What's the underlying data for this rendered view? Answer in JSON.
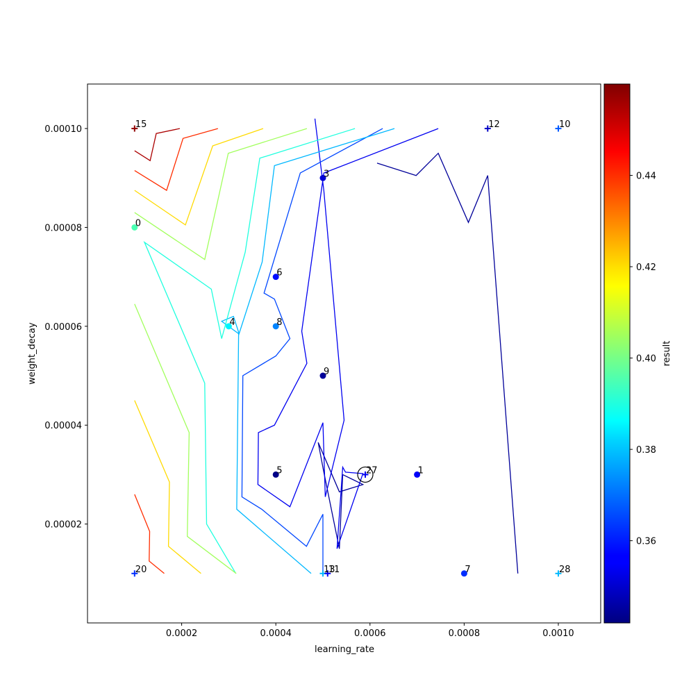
{
  "chart_data": {
    "type": "scatter",
    "xlabel": "learning_rate",
    "ylabel": "weight_decay",
    "colorbar_label": "result",
    "xlim": [
      0.0,
      0.00109
    ],
    "ylim": [
      0.0,
      0.000109
    ],
    "x_ticks": [
      {
        "v": 0.0002,
        "label": "0.0002"
      },
      {
        "v": 0.0004,
        "label": "0.0004"
      },
      {
        "v": 0.0006,
        "label": "0.0006"
      },
      {
        "v": 0.0008,
        "label": "0.0008"
      },
      {
        "v": 0.001,
        "label": "0.0010"
      }
    ],
    "y_ticks": [
      {
        "v": 2e-05,
        "label": "0.00002"
      },
      {
        "v": 4e-05,
        "label": "0.00004"
      },
      {
        "v": 6e-05,
        "label": "0.00006"
      },
      {
        "v": 8e-05,
        "label": "0.00008"
      },
      {
        "v": 0.0001,
        "label": "0.00010"
      }
    ],
    "colorbar": {
      "min": 0.342,
      "max": 0.46,
      "colormap": "jet",
      "ticks": [
        {
          "v": 0.36,
          "label": "0.36"
        },
        {
          "v": 0.38,
          "label": "0.38"
        },
        {
          "v": 0.4,
          "label": "0.40"
        },
        {
          "v": 0.42,
          "label": "0.42"
        },
        {
          "v": 0.44,
          "label": "0.44"
        }
      ]
    },
    "points": [
      {
        "label": "0",
        "x": 0.0001,
        "y": 8e-05,
        "result": 0.395,
        "marker": "circle"
      },
      {
        "label": "1",
        "x": 0.0007,
        "y": 3e-05,
        "result": 0.356,
        "marker": "circle"
      },
      {
        "label": "3",
        "x": 0.0005,
        "y": 9e-05,
        "result": 0.352,
        "marker": "circle"
      },
      {
        "label": "4",
        "x": 0.0003,
        "y": 6e-05,
        "result": 0.385,
        "marker": "circle"
      },
      {
        "label": "5",
        "x": 0.0004,
        "y": 3e-05,
        "result": 0.343,
        "marker": "circle"
      },
      {
        "label": "6",
        "x": 0.0004,
        "y": 7e-05,
        "result": 0.358,
        "marker": "circle"
      },
      {
        "label": "8",
        "x": 0.0004,
        "y": 6e-05,
        "result": 0.372,
        "marker": "circle"
      },
      {
        "label": "9",
        "x": 0.0005,
        "y": 5e-05,
        "result": 0.345,
        "marker": "circle"
      },
      {
        "label": "7",
        "x": 0.0008,
        "y": 1e-05,
        "result": 0.362,
        "marker": "circle"
      },
      {
        "label": "15",
        "x": 0.0001,
        "y": 0.0001,
        "result": 0.458,
        "marker": "plus"
      },
      {
        "label": "12",
        "x": 0.00085,
        "y": 0.0001,
        "result": 0.35,
        "marker": "plus"
      },
      {
        "label": "10",
        "x": 0.001,
        "y": 0.0001,
        "result": 0.367,
        "marker": "plus"
      },
      {
        "label": "27",
        "x": 0.00059,
        "y": 3e-05,
        "result": 0.355,
        "marker": "plus"
      },
      {
        "label": "20",
        "x": 0.0001,
        "y": 1e-05,
        "result": 0.362,
        "marker": "plus"
      },
      {
        "label": "13",
        "x": 0.0005,
        "y": 1e-05,
        "result": 0.378,
        "marker": "plus"
      },
      {
        "label": "11",
        "x": 0.00051,
        "y": 1e-05,
        "result": 0.355,
        "marker": "plus"
      },
      {
        "label": "28",
        "x": 0.001,
        "y": 1e-05,
        "result": 0.378,
        "marker": "plus"
      }
    ],
    "highlight": {
      "x": 0.00059,
      "y": 3e-05
    },
    "contours": [
      {
        "level": 0.345,
        "segments": [
          [
            [
              0.000615,
              9.3e-05
            ],
            [
              0.000698,
              9.05e-05
            ],
            [
              0.000745,
              9.5e-05
            ],
            [
              0.000809,
              8.1e-05
            ],
            [
              0.00085,
              9.05e-05
            ],
            [
              0.000914,
              1e-05
            ]
          ],
          [
            [
              0.000542,
              3e-05
            ],
            [
              0.000585,
              2.8e-05
            ],
            [
              0.000535,
              2.65e-05
            ],
            [
              0.00049,
              3.65e-05
            ],
            [
              0.000502,
              3.05e-05
            ],
            [
              0.000535,
              1.5e-05
            ],
            [
              0.000542,
              3e-05
            ]
          ]
        ]
      },
      {
        "level": 0.355,
        "segments": [
          [
            [
              0.000745,
              0.0001
            ],
            [
              0.000502,
              9.1e-05
            ],
            [
              0.000455,
              5.9e-05
            ],
            [
              0.000466,
              5.25e-05
            ],
            [
              0.000397,
              4e-05
            ],
            [
              0.000363,
              3.85e-05
            ],
            [
              0.000362,
              2.8e-05
            ],
            [
              0.00043,
              2.35e-05
            ],
            [
              0.0005,
              4.05e-05
            ],
            [
              0.000505,
              2.55e-05
            ],
            [
              0.000545,
              4.1e-05
            ],
            [
              0.000502,
              8.75e-05
            ],
            [
              0.000483,
              0.000102
            ]
          ],
          [
            [
              0.00053,
              1.5e-05
            ],
            [
              0.000585,
              3.02e-05
            ],
            [
              0.000548,
              3.05e-05
            ],
            [
              0.000542,
              3.15e-05
            ],
            [
              0.00053,
              1.5e-05
            ]
          ]
        ]
      },
      {
        "level": 0.365,
        "segments": [
          [
            [
              0.000627,
              0.0001
            ],
            [
              0.000452,
              9.1e-05
            ],
            [
              0.000375,
              6.67e-05
            ],
            [
              0.000397,
              6.55e-05
            ],
            [
              0.00043,
              5.75e-05
            ],
            [
              0.0004,
              5.4e-05
            ],
            [
              0.00033,
              5e-05
            ],
            [
              0.000328,
              2.55e-05
            ],
            [
              0.00037,
              2.3e-05
            ],
            [
              0.000465,
              1.55e-05
            ],
            [
              0.0005,
              2.2e-05
            ],
            [
              0.0005,
              1e-05
            ]
          ]
        ]
      },
      {
        "level": 0.378,
        "segments": [
          [
            [
              0.000652,
              0.0001
            ],
            [
              0.000397,
              9.25e-05
            ],
            [
              0.000371,
              7.3e-05
            ],
            [
              0.000322,
              5.85e-05
            ],
            [
              0.00031,
              6.2e-05
            ],
            [
              0.000285,
              6.1e-05
            ],
            [
              0.000321,
              5.85e-05
            ],
            [
              0.000317,
              2.3e-05
            ],
            [
              0.000475,
              1e-05
            ]
          ]
        ]
      },
      {
        "level": 0.39,
        "segments": [
          [
            [
              0.000568,
              0.0001
            ],
            [
              0.000366,
              9.4e-05
            ],
            [
              0.000335,
              7.5e-05
            ],
            [
              0.000285,
              5.75e-05
            ],
            [
              0.000263,
              6.75e-05
            ],
            [
              0.000121,
              7.7e-05
            ],
            [
              0.000249,
              4.85e-05
            ],
            [
              0.000253,
              2e-05
            ],
            [
              0.000315,
              1e-05
            ]
          ]
        ]
      },
      {
        "level": 0.405,
        "segments": [
          [
            [
              0.000466,
              0.0001
            ],
            [
              0.000299,
              9.5e-05
            ],
            [
              0.000249,
              7.35e-05
            ],
            [
              0.0001,
              8.3e-05
            ]
          ],
          [
            [
              0.0001,
              6.45e-05
            ],
            [
              0.000216,
              3.85e-05
            ],
            [
              0.000212,
              1.75e-05
            ],
            [
              0.000316,
              1e-05
            ]
          ]
        ]
      },
      {
        "level": 0.42,
        "segments": [
          [
            [
              0.000373,
              0.0001
            ],
            [
              0.000266,
              9.65e-05
            ],
            [
              0.000208,
              8.05e-05
            ],
            [
              0.0001,
              8.75e-05
            ]
          ],
          [
            [
              0.0001,
              4.5e-05
            ],
            [
              0.000174,
              2.85e-05
            ],
            [
              0.000172,
              1.55e-05
            ],
            [
              0.000241,
              1e-05
            ]
          ]
        ]
      },
      {
        "level": 0.44,
        "segments": [
          [
            [
              0.000277,
              0.0001
            ],
            [
              0.000203,
              9.8e-05
            ],
            [
              0.000168,
              8.75e-05
            ],
            [
              0.0001,
              9.15e-05
            ]
          ],
          [
            [
              0.0001,
              2.6e-05
            ],
            [
              0.000132,
              1.85e-05
            ],
            [
              0.000131,
              1.25e-05
            ],
            [
              0.000163,
              1e-05
            ]
          ]
        ]
      },
      {
        "level": 0.455,
        "segments": [
          [
            [
              0.000196,
              0.0001
            ],
            [
              0.000146,
              9.9e-05
            ],
            [
              0.000133,
              9.35e-05
            ],
            [
              0.0001,
              9.55e-05
            ]
          ]
        ]
      }
    ]
  }
}
